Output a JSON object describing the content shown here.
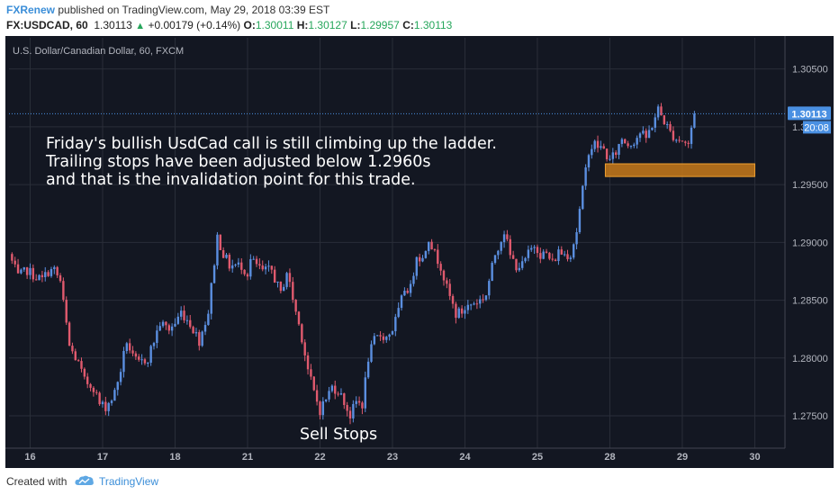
{
  "header": {
    "author": "FXRenew",
    "published": "published on TradingView.com, May 29, 2018 03:39 EST",
    "symbol": "FX:USDCAD, 60",
    "last": "1.30113",
    "change": "+0.00179 (+0.14%)",
    "o_label": "O:",
    "o": "1.30011",
    "h_label": "H:",
    "h": "1.30127",
    "l_label": "L:",
    "l": "1.29957",
    "c_label": "C:",
    "c": "1.30113"
  },
  "footer": {
    "created_with": "Created with",
    "brand": "TradingView"
  },
  "colors": {
    "background": "#131722",
    "grid": "#2a2e39",
    "up": "#5b8fe0",
    "down": "#e05a6e",
    "zone_fill": "#c87a1a",
    "zone_border": "#f0a030",
    "price_line": "#4a90e2",
    "axis_text": "#b2b5be"
  },
  "chart_data": {
    "type": "candlestick",
    "title": "U.S. Dollar/Canadian Dollar, 60, FXCM",
    "x_tick_labels": [
      "16",
      "17",
      "18",
      "21",
      "22",
      "23",
      "24",
      "25",
      "28",
      "29",
      "30"
    ],
    "x_tick_hours": [
      0,
      24,
      48,
      72,
      96,
      120,
      144,
      168,
      192,
      216,
      240
    ],
    "y_tick_labels": [
      "1.30500",
      "1.30000",
      "1.29500",
      "1.29000",
      "1.28500",
      "1.28000",
      "1.27500"
    ],
    "y_ticks": [
      1.305,
      1.3,
      1.295,
      1.29,
      1.285,
      1.28,
      1.275
    ],
    "ylim": [
      1.2722,
      1.3077
    ],
    "xlim_hours": [
      -7,
      250
    ],
    "grid": true,
    "last_price_label": "1.30113",
    "last_price": 1.30113,
    "countdown_label": "20:08",
    "zone": {
      "x_start_hours": 190.5,
      "x_end_hours": 240,
      "y_low": 1.2957,
      "y_high": 1.2968
    },
    "annotation_lines": [
      "Friday's bullish UsdCad call is still climbing up the ladder.",
      "Trailing stops have been adjusted below 1.2960s",
      "and that is the invalidation point for this trade."
    ],
    "label_sell_stops": "Sell Stops",
    "path_hours": [
      -7,
      -4,
      -1,
      2,
      4,
      6,
      8,
      10,
      13,
      16,
      18,
      21,
      23,
      25,
      27,
      28,
      30,
      32,
      34,
      36,
      39,
      43,
      46,
      48,
      50,
      53,
      56,
      59,
      62,
      64,
      66,
      70,
      72,
      73,
      75,
      77,
      80,
      83,
      85,
      88,
      90,
      92,
      94,
      96,
      98,
      100,
      102,
      104,
      106,
      108,
      110,
      112,
      114,
      116,
      118,
      120,
      122,
      124,
      126,
      128,
      130,
      132,
      134,
      136,
      138,
      141,
      143,
      145,
      147,
      149,
      151,
      154,
      157,
      159,
      161,
      163,
      165,
      167,
      168,
      169,
      171,
      173,
      175,
      177,
      179,
      181,
      183,
      185,
      187,
      190,
      192,
      194,
      196,
      198,
      200,
      202,
      204,
      206,
      208,
      210,
      212,
      214,
      216,
      218,
      220
    ],
    "path_values": [
      1.289,
      1.287,
      1.2876,
      1.287,
      1.2868,
      1.2875,
      1.2876,
      1.2866,
      1.281,
      1.2795,
      1.278,
      1.2775,
      1.276,
      1.2758,
      1.2765,
      1.277,
      1.279,
      1.2815,
      1.28,
      1.2795,
      1.28,
      1.283,
      1.2825,
      1.283,
      1.284,
      1.283,
      1.2815,
      1.284,
      1.2905,
      1.289,
      1.288,
      1.288,
      1.2873,
      1.2885,
      1.288,
      1.2875,
      1.2876,
      1.2855,
      1.2875,
      1.284,
      1.2818,
      1.279,
      1.277,
      1.2755,
      1.2765,
      1.2775,
      1.2772,
      1.2762,
      1.275,
      1.2762,
      1.276,
      1.28,
      1.2815,
      1.282,
      1.2818,
      1.2825,
      1.284,
      1.286,
      1.286,
      1.289,
      1.2885,
      1.2905,
      1.289,
      1.288,
      1.286,
      1.2838,
      1.284,
      1.2845,
      1.2848,
      1.285,
      1.2855,
      1.289,
      1.291,
      1.2888,
      1.288,
      1.288,
      1.289,
      1.2898,
      1.2895,
      1.289,
      1.289,
      1.2882,
      1.2892,
      1.289,
      1.289,
      1.291,
      1.2945,
      1.298,
      1.2985,
      1.298,
      1.297,
      1.2978,
      1.299,
      1.2985,
      1.2988,
      1.2995,
      1.299,
      1.3002,
      1.3015,
      1.3005,
      1.2995,
      1.299,
      1.2988,
      1.2985,
      1.3011
    ]
  }
}
